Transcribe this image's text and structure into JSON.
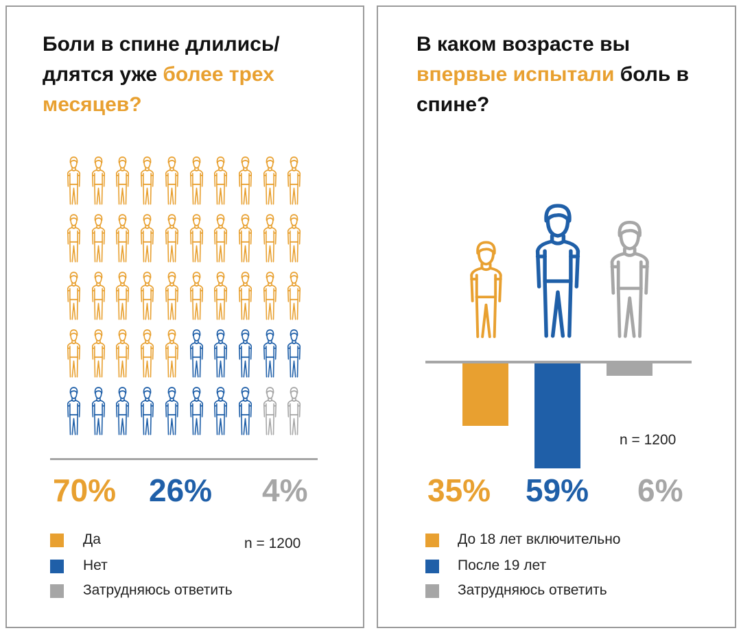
{
  "colors": {
    "yes": "#e8a030",
    "no": "#1f5fa8",
    "unsure": "#a6a6a6"
  },
  "chart_data": [
    {
      "type": "pictogram",
      "title_parts": [
        "Боли в спине длились/ длятся уже ",
        "более трех месяцев",
        "?"
      ],
      "icons_total": 50,
      "categories": [
        "Да",
        "Нет",
        "Затрудняюсь ответить"
      ],
      "values": [
        70,
        26,
        4
      ],
      "labels": [
        "70%",
        "26%",
        "4%"
      ],
      "colors": [
        "#e8a030",
        "#1f5fa8",
        "#a6a6a6"
      ],
      "n_label": "n = 1200",
      "icon": "person-icon"
    },
    {
      "type": "bar",
      "title_parts": [
        "В каком возрасте вы ",
        "впервые испытали",
        " боль в спине?"
      ],
      "categories": [
        "До 18 лет включительно",
        "После 19 лет",
        "Затрудняюсь ответить"
      ],
      "values": [
        35,
        59,
        6
      ],
      "labels": [
        "35%",
        "59%",
        "6%"
      ],
      "colors": [
        "#e8a030",
        "#1f5fa8",
        "#a6a6a6"
      ],
      "n_label": "n = 1200",
      "icon": "person-icon"
    }
  ]
}
